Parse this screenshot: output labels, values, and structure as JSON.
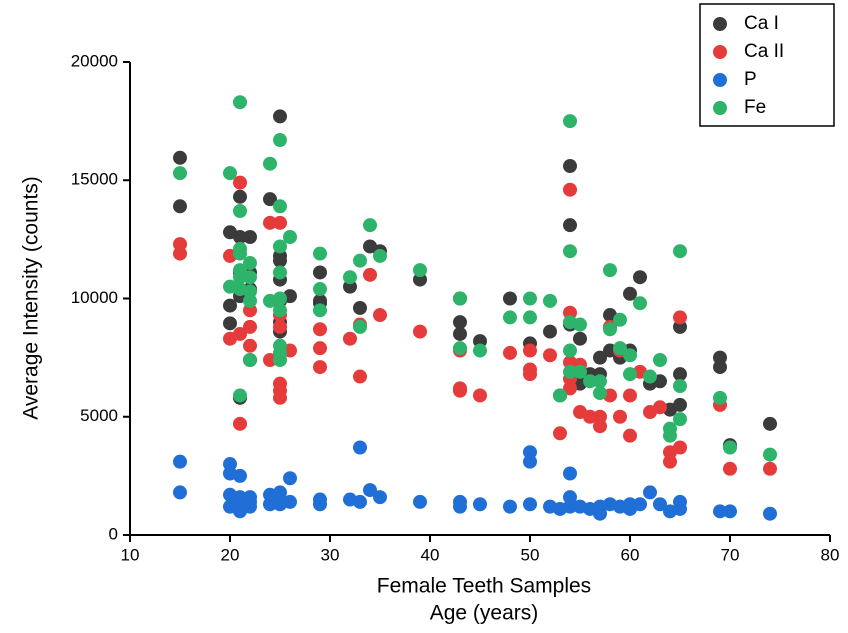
{
  "chart_data": {
    "type": "scatter",
    "xlabel": [
      "Female Teeth Samples",
      "Age (years)"
    ],
    "ylabel": "Average Intensity (counts)",
    "xlim": [
      10,
      80
    ],
    "xticks": [
      10,
      20,
      30,
      40,
      50,
      60,
      70,
      80
    ],
    "ylim": [
      0,
      20000
    ],
    "yticks": [
      0,
      5000,
      10000,
      15000,
      20000
    ],
    "grid": false,
    "legend": "upper right",
    "series": [
      {
        "name": "Ca I",
        "color": "#3b3b3b",
        "x": [
          15,
          15,
          20,
          20,
          20,
          21,
          21,
          21,
          21,
          21,
          22,
          22,
          22,
          24,
          25,
          25,
          25,
          25,
          25,
          25,
          25,
          26,
          29,
          29,
          29,
          32,
          33,
          34,
          35,
          39,
          43,
          43,
          43,
          45,
          48,
          50,
          52,
          53,
          54,
          54,
          54,
          55,
          55,
          56,
          57,
          57,
          58,
          58,
          59,
          60,
          60,
          61,
          62,
          63,
          64,
          65,
          65,
          65,
          69,
          69,
          70,
          74
        ],
        "values": [
          15950,
          13900,
          12800,
          9700,
          8950,
          12600,
          14300,
          11100,
          10100,
          5800,
          12600,
          11100,
          10400,
          14200,
          17700,
          11800,
          11600,
          10800,
          9900,
          9000,
          8600,
          10100,
          11100,
          9900,
          9800,
          10500,
          9600,
          12200,
          12000,
          10800,
          10000,
          9000,
          8500,
          8200,
          10000,
          8100,
          8600,
          5900,
          15600,
          13100,
          8900,
          8300,
          6400,
          6800,
          7500,
          6800,
          9300,
          7800,
          7500,
          10200,
          7800,
          10900,
          6400,
          6500,
          5300,
          8800,
          6800,
          5500,
          7500,
          7100,
          3800,
          4700
        ]
      },
      {
        "name": "Ca II",
        "color": "#e63b3b",
        "x": [
          15,
          15,
          20,
          20,
          21,
          21,
          21,
          22,
          22,
          22,
          22,
          24,
          24,
          25,
          25,
          25,
          25,
          25,
          25,
          26,
          29,
          29,
          29,
          32,
          33,
          33,
          34,
          35,
          39,
          43,
          43,
          43,
          45,
          48,
          50,
          50,
          50,
          52,
          53,
          54,
          54,
          54,
          54,
          54,
          55,
          55,
          56,
          57,
          57,
          58,
          58,
          59,
          59,
          60,
          60,
          61,
          62,
          63,
          64,
          64,
          65,
          65,
          69,
          70,
          74
        ],
        "values": [
          12300,
          11900,
          11800,
          8300,
          14900,
          8500,
          4700,
          9500,
          8800,
          8000,
          7400,
          13200,
          7400,
          13200,
          9300,
          8800,
          6400,
          6100,
          5800,
          7800,
          8700,
          7900,
          7100,
          8300,
          8900,
          6700,
          11000,
          9300,
          8600,
          7800,
          6200,
          6100,
          5900,
          7700,
          7800,
          7000,
          6800,
          7600,
          4300,
          14600,
          9400,
          7300,
          6600,
          6200,
          7200,
          5200,
          5000,
          4600,
          5000,
          8800,
          5900,
          7800,
          5000,
          4200,
          5900,
          6900,
          5200,
          5400,
          3100,
          3500,
          9200,
          3700,
          5500,
          2800,
          2800
        ]
      },
      {
        "name": "P",
        "color": "#1f6fd6",
        "x": [
          15,
          15,
          20,
          20,
          20,
          20,
          21,
          21,
          21,
          21,
          22,
          22,
          22,
          24,
          24,
          25,
          25,
          25,
          26,
          26,
          29,
          29,
          32,
          33,
          33,
          34,
          35,
          39,
          43,
          43,
          45,
          48,
          50,
          50,
          50,
          52,
          53,
          54,
          54,
          54,
          55,
          56,
          57,
          57,
          58,
          59,
          60,
          60,
          61,
          62,
          63,
          64,
          65,
          65,
          69,
          70,
          74
        ],
        "values": [
          3100,
          1800,
          3000,
          2600,
          1700,
          1200,
          2500,
          1600,
          1300,
          1000,
          1600,
          1400,
          1200,
          1700,
          1300,
          1800,
          1500,
          1300,
          2400,
          1400,
          1500,
          1300,
          1500,
          3700,
          1400,
          1900,
          1600,
          1400,
          1400,
          1200,
          1300,
          1200,
          3500,
          3100,
          1300,
          1200,
          1100,
          2600,
          1600,
          1200,
          1200,
          1100,
          900,
          1200,
          1300,
          1200,
          1100,
          1300,
          1300,
          1800,
          1300,
          1000,
          1400,
          1100,
          1000,
          1000,
          900
        ]
      },
      {
        "name": "Fe",
        "color": "#2eb36b",
        "x": [
          15,
          20,
          20,
          21,
          21,
          21,
          21,
          21,
          21,
          21,
          21,
          22,
          22,
          22,
          22,
          22,
          24,
          24,
          25,
          25,
          25,
          25,
          25,
          25,
          25,
          25,
          25,
          26,
          29,
          29,
          29,
          32,
          33,
          33,
          34,
          35,
          39,
          43,
          43,
          45,
          48,
          50,
          50,
          52,
          53,
          54,
          54,
          54,
          54,
          54,
          55,
          55,
          56,
          57,
          57,
          58,
          58,
          59,
          59,
          60,
          60,
          61,
          62,
          63,
          64,
          64,
          65,
          65,
          65,
          69,
          70,
          74
        ],
        "values": [
          15300,
          15300,
          10500,
          18300,
          13700,
          12100,
          11900,
          11200,
          10900,
          10400,
          5900,
          11500,
          10900,
          10300,
          9900,
          7400,
          15700,
          9900,
          16700,
          13900,
          12200,
          11100,
          10000,
          9500,
          8000,
          7700,
          7400,
          12600,
          11900,
          10400,
          9500,
          10900,
          11600,
          8800,
          13100,
          11800,
          11200,
          10000,
          7900,
          7800,
          9200,
          10000,
          9200,
          9900,
          5900,
          17500,
          12000,
          9000,
          7800,
          6900,
          8900,
          6900,
          6500,
          6500,
          6000,
          11200,
          8700,
          9100,
          7900,
          6800,
          7600,
          9800,
          6700,
          7400,
          4500,
          4200,
          12000,
          6300,
          4900,
          5800,
          3700,
          3400
        ]
      }
    ]
  }
}
